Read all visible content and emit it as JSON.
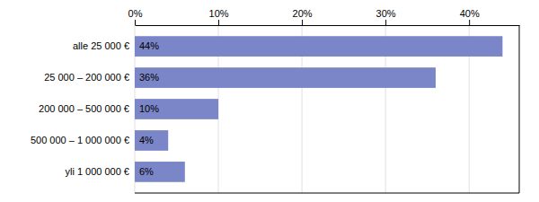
{
  "chart_data": {
    "type": "bar",
    "orientation": "horizontal",
    "categories": [
      "alle 25 000 €",
      "25 000 – 200 000 €",
      "200 000 – 500 000 €",
      "500 000 – 1 000 000 €",
      "yli 1 000 000 €"
    ],
    "values": [
      44,
      36,
      10,
      4,
      6
    ],
    "value_labels": [
      "44%",
      "36%",
      "10%",
      "4%",
      "6%"
    ],
    "data_labels": true,
    "color": "#7b86c8",
    "xlim": [
      0,
      46
    ],
    "xticks": [
      {
        "value": 0,
        "label": "0%"
      },
      {
        "value": 10,
        "label": "10%"
      },
      {
        "value": 20,
        "label": "20%"
      },
      {
        "value": 30,
        "label": "30%"
      },
      {
        "value": 40,
        "label": "40%"
      }
    ],
    "grid": true
  }
}
